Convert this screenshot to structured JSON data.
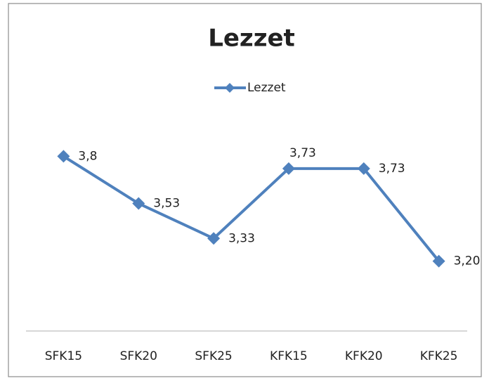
{
  "chart_data": {
    "type": "line",
    "title": "Lezzet",
    "categories": [
      "SFK15",
      "SFK20",
      "SFK25",
      "KFK15",
      "KFK20",
      "KFK25"
    ],
    "series": [
      {
        "name": "Lezzet",
        "color": "#4f81bd",
        "values": [
          3.8,
          3.53,
          3.33,
          3.73,
          3.73,
          3.2
        ],
        "value_labels": [
          "3,8",
          "3,53",
          "3,33",
          "3,73",
          "3,73",
          "3,20"
        ]
      }
    ],
    "ylim": [
      2.8,
      4.2
    ],
    "grid": false,
    "legend": "top"
  }
}
